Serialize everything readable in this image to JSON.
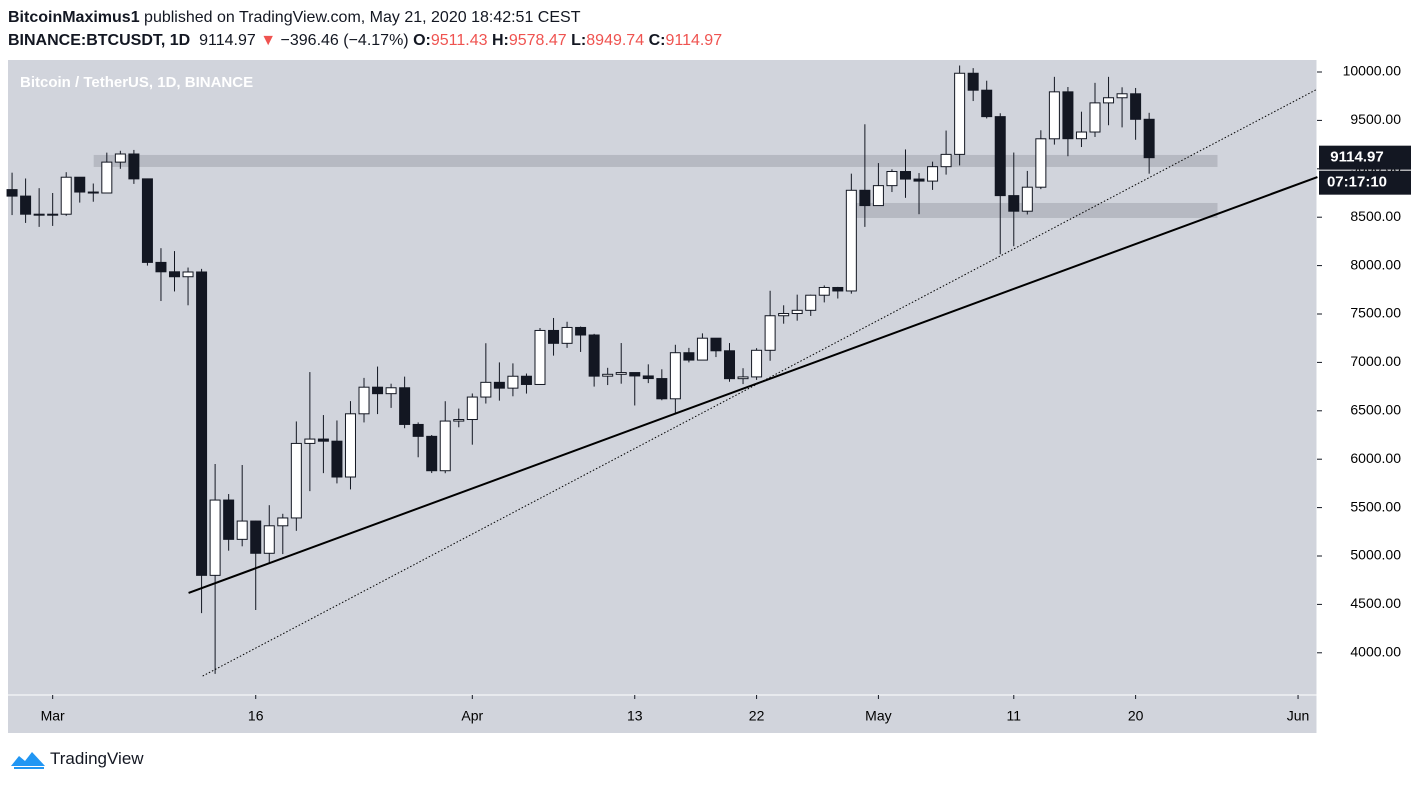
{
  "header": {
    "author": "BitcoinMaximus1",
    "published": "published on TradingView.com, May 21, 2020 18:42:51 CEST",
    "symbol": "BINANCE:BTCUSDT, 1D",
    "last": "9114.97",
    "arrow": "▼",
    "change": "−396.46 (−4.17%)",
    "ohlc": [
      {
        "label": "O:",
        "value": "9511.43"
      },
      {
        "label": "H:",
        "value": "9578.47"
      },
      {
        "label": "L:",
        "value": "8949.74"
      },
      {
        "label": "C:",
        "value": "9114.97"
      }
    ]
  },
  "footer": {
    "logo": "TradingView"
  },
  "chart_data": {
    "type": "candlestick",
    "title": "Bitcoin / TetherUS, 1D, BINANCE",
    "up_color": "#ffffff",
    "down_color": "#131722",
    "wick_color": "#131722",
    "background": "#d1d4dc",
    "open": [
      8785,
      8718,
      8531,
      8524,
      8531,
      8913,
      8760,
      8750,
      9069,
      9153,
      8896,
      8033,
      7936,
      7885,
      7934,
      4800,
      5578,
      5172,
      5361,
      5028,
      5312,
      5393,
      6163,
      6208,
      6186,
      5816,
      6469,
      6744,
      6677,
      6738,
      6359,
      6236,
      5881,
      6394,
      6410,
      6642,
      6794,
      6734,
      6857,
      6772,
      7330,
      7197,
      7361,
      7283,
      6858,
      6877,
      6895,
      6860,
      6833,
      6624,
      7100,
      7024,
      7250,
      7120,
      6832,
      6850,
      7125,
      7482,
      7505,
      7538,
      7694,
      7774,
      7738,
      8778,
      8620,
      8826,
      8972,
      8894,
      8873,
      9022,
      9149,
      9987,
      9812,
      9539,
      8723,
      8562,
      8810,
      9310,
      9795,
      9311,
      9380,
      9681,
      9734,
      9775,
      9511.43
    ],
    "high": [
      8960,
      8900,
      8800,
      8750,
      8965,
      8915,
      8848,
      9167,
      9186,
      9195,
      8900,
      8180,
      8150,
      7980,
      7966,
      5950,
      5640,
      5940,
      5365,
      5525,
      5436,
      6390,
      6900,
      6456,
      6400,
      6600,
      6840,
      6957,
      6780,
      6853,
      6380,
      6250,
      6599,
      6523,
      6679,
      7198,
      7000,
      6990,
      6885,
      7355,
      7459,
      7420,
      7371,
      7295,
      6944,
      7200,
      6895,
      6980,
      6929,
      7182,
      7150,
      7300,
      7250,
      7200,
      6940,
      7147,
      7740,
      7590,
      7700,
      7700,
      7795,
      7780,
      8950,
      9460,
      9059,
      8995,
      9200,
      8956,
      9074,
      9395,
      10067,
      10040,
      9910,
      9574,
      9168,
      8978,
      9398,
      9950,
      9845,
      9590,
      9888,
      9950,
      9842,
      9835,
      9578.47
    ],
    "low": [
      8522,
      8441,
      8400,
      8410,
      8514,
      8651,
      8660,
      8746,
      9000,
      8844,
      8000,
      7634,
      7733,
      7590,
      4410,
      3782,
      5055,
      5100,
      4442,
      4920,
      5020,
      5260,
      5670,
      5856,
      5750,
      5688,
      6380,
      6466,
      6530,
      6320,
      6020,
      5857,
      5855,
      6330,
      6150,
      6575,
      6605,
      6650,
      6678,
      6770,
      7070,
      7150,
      7108,
      6750,
      6766,
      6780,
      6555,
      6786,
      6609,
      6468,
      7000,
      7024,
      7055,
      6800,
      6776,
      6819,
      7017,
      7400,
      7431,
      7480,
      7620,
      7660,
      7710,
      8400,
      8620,
      8760,
      8700,
      8531,
      8782,
      8940,
      9035,
      9700,
      9520,
      8117,
      8200,
      8528,
      8790,
      9250,
      9130,
      9225,
      9329,
      9450,
      9428,
      9300,
      8949.74
    ],
    "close": [
      8718,
      8531,
      8524,
      8531,
      8913,
      8760,
      8750,
      9069,
      9153,
      8896,
      8033,
      7936,
      7885,
      7934,
      4800,
      5578,
      5172,
      5361,
      5028,
      5312,
      5393,
      6163,
      6208,
      6186,
      5816,
      6469,
      6744,
      6677,
      6738,
      6359,
      6236,
      5881,
      6394,
      6410,
      6642,
      6794,
      6734,
      6857,
      6772,
      7330,
      7197,
      7361,
      7283,
      6858,
      6877,
      6895,
      6860,
      6833,
      6624,
      7100,
      7024,
      7250,
      7120,
      6832,
      6850,
      7125,
      7482,
      7505,
      7538,
      7694,
      7774,
      7738,
      8778,
      8620,
      8826,
      8972,
      8894,
      8873,
      9022,
      9149,
      9987,
      9812,
      9539,
      8723,
      8562,
      8810,
      9310,
      9795,
      9311,
      9380,
      9681,
      9734,
      9775,
      9511.43,
      9114.97
    ],
    "xlim": [
      -0.3,
      96.4
    ],
    "xticks": [
      {
        "value": 3,
        "label": "Mar"
      },
      {
        "value": 18,
        "label": "16"
      },
      {
        "value": 34,
        "label": "Apr"
      },
      {
        "value": 46,
        "label": "13"
      },
      {
        "value": 55,
        "label": "22"
      },
      {
        "value": 64,
        "label": "May"
      },
      {
        "value": 74,
        "label": "11"
      },
      {
        "value": 83,
        "label": "20"
      },
      {
        "value": 95,
        "label": "Jun"
      }
    ],
    "ylim": [
      3564,
      10124
    ],
    "yticks": [
      {
        "value": 4000,
        "label": "4000.00"
      },
      {
        "value": 4500,
        "label": "4500.00"
      },
      {
        "value": 5000,
        "label": "5000.00"
      },
      {
        "value": 5500,
        "label": "5500.00"
      },
      {
        "value": 6000,
        "label": "6000.00"
      },
      {
        "value": 6500,
        "label": "6500.00"
      },
      {
        "value": 7000,
        "label": "7000.00"
      },
      {
        "value": 7500,
        "label": "7500.00"
      },
      {
        "value": 8000,
        "label": "8000.00"
      },
      {
        "value": 8500,
        "label": "8500.00"
      },
      {
        "value": 9000,
        "label": "9000.00"
      },
      {
        "value": 9500,
        "label": "9500.00"
      },
      {
        "value": 10000,
        "label": "10000.00"
      }
    ],
    "price_tag": {
      "value": 9114.97,
      "label": "9114.97",
      "countdown": "07:17:10"
    },
    "zones": [
      {
        "x": [
          6.03,
          89.05
        ],
        "y": [
          9019,
          9143
        ]
      },
      {
        "x": [
          62.0,
          89.05
        ],
        "y": [
          8492,
          8647
        ]
      }
    ],
    "trendlines": [
      {
        "style": "solid",
        "x": [
          13.04,
          96.43
        ],
        "y": [
          4618,
          8915
        ]
      },
      {
        "style": "dotted",
        "x": [
          14.08,
          96.43
        ],
        "y": [
          3760,
          9824
        ]
      }
    ]
  }
}
